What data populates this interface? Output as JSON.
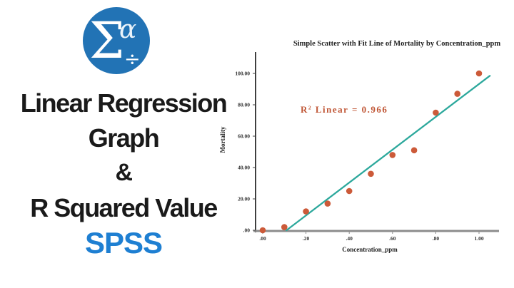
{
  "left_panel": {
    "logo": {
      "sigma": "Σ",
      "alpha": "α",
      "divide": "÷",
      "circle_color": "#2273b5"
    },
    "title_lines": [
      "Linear Regression",
      "Graph",
      "&",
      "R Squared Value"
    ],
    "spss_label": "SPSS",
    "text_color": "#1a1a1a",
    "spss_color": "#1e7fd2"
  },
  "chart_data": {
    "type": "scatter",
    "title": "Simple Scatter with Fit Line of Mortality by Concentration_ppm",
    "xlabel": "Concentration_ppm",
    "ylabel": "Mortality",
    "annotation": {
      "prefix": "R",
      "sup": "2",
      "suffix": " Linear = 0.966",
      "value": 0.966
    },
    "x": [
      0.0,
      0.1,
      0.2,
      0.3,
      0.4,
      0.5,
      0.6,
      0.7,
      0.8,
      0.9,
      1.0
    ],
    "y": [
      0,
      2,
      12,
      17,
      25,
      36,
      48,
      51,
      75,
      87,
      100
    ],
    "fit_line": {
      "x1": 0.11,
      "y1": 0,
      "x2": 1.05,
      "y2": 98.5
    },
    "x_ticks": [
      {
        "value": 0.0,
        "label": ".00"
      },
      {
        "value": 0.2,
        "label": ".20"
      },
      {
        "value": 0.4,
        "label": ".40"
      },
      {
        "value": 0.6,
        "label": ".60"
      },
      {
        "value": 0.8,
        "label": ".80"
      },
      {
        "value": 1.0,
        "label": "1.00"
      }
    ],
    "y_ticks": [
      {
        "value": 0,
        "label": ".00"
      },
      {
        "value": 20,
        "label": "20.00"
      },
      {
        "value": 40,
        "label": "40.00"
      },
      {
        "value": 60,
        "label": "60.00"
      },
      {
        "value": 80,
        "label": "80.00"
      },
      {
        "value": 100,
        "label": "100.00"
      }
    ],
    "xlim": [
      -0.03,
      1.09
    ],
    "ylim": [
      0,
      113
    ],
    "grid": false,
    "legend": "none",
    "colors": {
      "point": "#cc5a39",
      "fit_line": "#2ca89c",
      "annotation": "#bf5433",
      "y_axis": "#3f3f3f",
      "x_axis": "#8c8c8c"
    }
  }
}
